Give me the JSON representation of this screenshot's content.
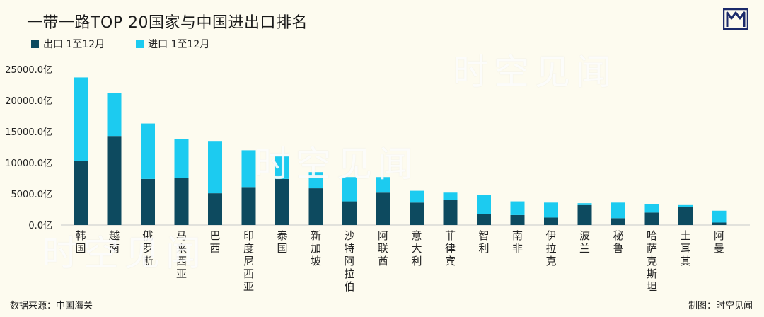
{
  "title": "一带一路TOP 20国家与中国进出口排名",
  "source": "数据来源：中国海关",
  "credit": "制图：时空见闻",
  "watermark": "时空见闻",
  "logo_icon": "shikong-logo-icon",
  "colors": {
    "export": "#0d4a5f",
    "import": "#1ccbf0",
    "background": "#fdfbef"
  },
  "chart_data": {
    "type": "bar",
    "stacked": true,
    "categories": [
      "韩国",
      "越南",
      "俄罗斯",
      "马来西亚",
      "巴西",
      "印度尼西亚",
      "泰国",
      "新加坡",
      "沙特阿拉伯",
      "阿联酋",
      "意大利",
      "菲律宾",
      "智利",
      "南非",
      "伊拉克",
      "波兰",
      "秘鲁",
      "哈萨克斯坦",
      "土耳其",
      "阿曼"
    ],
    "series": [
      {
        "name": "出口 1至12月",
        "values": [
          10300,
          14300,
          7400,
          7500,
          5100,
          6100,
          7400,
          5900,
          3800,
          5200,
          3600,
          4000,
          1800,
          1600,
          1200,
          3200,
          1100,
          2000,
          2900,
          400
        ]
      },
      {
        "name": "进口 1至12月",
        "values": [
          13400,
          6900,
          8900,
          6300,
          8400,
          5900,
          3600,
          2600,
          3900,
          2500,
          1900,
          1200,
          3000,
          2200,
          2400,
          300,
          2500,
          1400,
          300,
          1900
        ]
      }
    ],
    "yticks": [
      "0.0亿",
      "5000.0亿",
      "10000.0亿",
      "15000.0亿",
      "20000.0亿",
      "25000.0亿"
    ],
    "ylim": [
      0,
      25000
    ],
    "xlabel": "",
    "ylabel": "",
    "legend": "top-left",
    "grid": false
  }
}
